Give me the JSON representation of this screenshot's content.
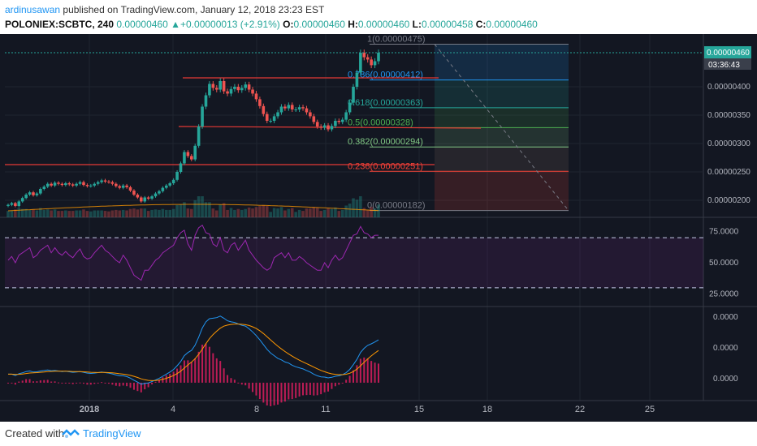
{
  "header": {
    "author": "ardinusawan",
    "published": "published on TradingView.com, January 12, 2018 23:23 EST",
    "symbol": "POLONIEX:SCBTC, 240",
    "last": "0.00000460",
    "change": "+0.00000013 (+2.91%)",
    "open_label": "O:",
    "open": "0.00000460",
    "high_label": "H:",
    "high": "0.00000460",
    "low_label": "L:",
    "low": "0.00000458",
    "close_label": "C:",
    "close": "0.00000460"
  },
  "footer": {
    "created_with": "Created with",
    "brand": "TradingView"
  },
  "colors": {
    "up": "#26a69a",
    "down": "#ef5350",
    "rsi": "#9c27b0",
    "macd": "#2196f3",
    "signal": "#ff9800",
    "price_tag": "#26a69a"
  },
  "chart_data": [
    {
      "type": "candlestick",
      "title": "",
      "price_tag": "0.00000460",
      "countdown": "03:36:43",
      "y_ticks": [
        "0.00000400",
        "0.00000350",
        "0.00000300",
        "0.00000250",
        "0.00000200"
      ],
      "ylim": [
        1.7e-06,
        4.9e-06
      ],
      "x_ticks": [
        "2018",
        "4",
        "8",
        "11",
        "15",
        "18",
        "22",
        "25"
      ],
      "fib_levels": [
        {
          "label": "1(0.00000475)",
          "value": 4.75e-06,
          "color": "#787b86"
        },
        {
          "label": "0.786(0.00000412)",
          "value": 4.12e-06,
          "color": "#2196f3"
        },
        {
          "label": "0.618(0.00000363)",
          "value": 3.63e-06,
          "color": "#26a69a"
        },
        {
          "label": "0.5(0.00000328)",
          "value": 3.28e-06,
          "color": "#4caf50"
        },
        {
          "label": "0.382(0.00000294)",
          "value": 2.94e-06,
          "color": "#81c784"
        },
        {
          "label": "0.236(0.00000251)",
          "value": 2.51e-06,
          "color": "#f44336"
        },
        {
          "label": "0(0.00000182)",
          "value": 1.82e-06,
          "color": "#787b86"
        }
      ],
      "closes": [
        1.92e-06,
        1.95e-06,
        1.9e-06,
        1.98e-06,
        2.04e-06,
        2.1e-06,
        2.14e-06,
        2.09e-06,
        2.12e-06,
        2.2e-06,
        2.24e-06,
        2.29e-06,
        2.26e-06,
        2.31e-06,
        2.29e-06,
        2.27e-06,
        2.3e-06,
        2.28e-06,
        2.26e-06,
        2.29e-06,
        2.32e-06,
        2.27e-06,
        2.25e-06,
        2.26e-06,
        2.29e-06,
        2.32e-06,
        2.35e-06,
        2.33e-06,
        2.32e-06,
        2.29e-06,
        2.25e-06,
        2.22e-06,
        2.26e-06,
        2.23e-06,
        2.17e-06,
        2.1e-06,
        2.05e-06,
        1.98e-06,
        2.05e-06,
        2.03e-06,
        2.07e-06,
        2.12e-06,
        2.16e-06,
        2.22e-06,
        2.26e-06,
        2.3e-06,
        2.36e-06,
        2.5e-06,
        2.65e-06,
        2.85e-06,
        2.78e-06,
        2.72e-06,
        2.96e-06,
        3.3e-06,
        3.65e-06,
        3.85e-06,
        4.05e-06,
        3.98e-06,
        3.95e-06,
        4.1e-06,
        3.92e-06,
        3.88e-06,
        3.96e-06,
        4e-06,
        3.94e-06,
        3.98e-06,
        4.04e-06,
        3.95e-06,
        3.88e-06,
        3.78e-06,
        3.66e-06,
        3.52e-06,
        3.4e-06,
        3.4e-06,
        3.48e-06,
        3.55e-06,
        3.65e-06,
        3.62e-06,
        3.68e-06,
        3.6e-06,
        3.6e-06,
        3.64e-06,
        3.62e-06,
        3.55e-06,
        3.48e-06,
        3.38e-06,
        3.3e-06,
        3.28e-06,
        3.32e-06,
        3.25e-06,
        3.31e-06,
        3.4e-06,
        3.38e-06,
        3.42e-06,
        3.55e-06,
        3.72e-06,
        4e-06,
        4.25e-06,
        4.6e-06,
        4.52e-06,
        4.48e-06,
        4.38e-06,
        4.45e-06,
        4.6e-06
      ]
    },
    {
      "type": "line",
      "series": [
        {
          "name": "RSI"
        }
      ],
      "y_ticks": [
        "75.0000",
        "50.0000",
        "25.0000"
      ],
      "ylim": [
        15,
        85
      ],
      "bands": [
        70,
        30
      ],
      "values": [
        52,
        55,
        50,
        56,
        58,
        60,
        62,
        54,
        56,
        60,
        62,
        64,
        58,
        62,
        58,
        56,
        59,
        56,
        54,
        58,
        61,
        55,
        53,
        54,
        58,
        61,
        64,
        60,
        58,
        55,
        52,
        50,
        56,
        52,
        46,
        40,
        38,
        36,
        44,
        44,
        48,
        52,
        54,
        58,
        60,
        62,
        64,
        70,
        74,
        76,
        65,
        60,
        72,
        78,
        80,
        74,
        73,
        65,
        63,
        70,
        60,
        58,
        64,
        66,
        60,
        64,
        68,
        60,
        56,
        52,
        49,
        46,
        44,
        46,
        54,
        56,
        58,
        54,
        58,
        52,
        52,
        55,
        53,
        50,
        48,
        46,
        44,
        44,
        50,
        46,
        52,
        56,
        52,
        54,
        60,
        66,
        72,
        73,
        79,
        74,
        73,
        70,
        72,
        72
      ]
    },
    {
      "type": "line",
      "series": [
        {
          "name": "MACD"
        },
        {
          "name": "Signal"
        },
        {
          "name": "Histogram"
        }
      ],
      "y_ticks": [
        "0.0000",
        "0.0000",
        "0.0000"
      ],
      "ylim": [
        -8,
        27
      ],
      "macd": [
        2,
        2,
        1.5,
        2.2,
        2.5,
        3,
        3.2,
        2.8,
        2.9,
        3.2,
        3.4,
        3.6,
        3.3,
        3.4,
        3.2,
        3,
        3.1,
        2.9,
        2.7,
        2.8,
        3,
        2.7,
        2.4,
        2.3,
        2.4,
        2.6,
        2.8,
        2.6,
        2.4,
        2.1,
        1.7,
        1.4,
        1.4,
        1.1,
        0.5,
        -0.3,
        -1,
        -1.8,
        -1.5,
        -1.3,
        -0.8,
        -0.2,
        0.4,
        1.2,
        2,
        2.8,
        3.8,
        5.2,
        6.8,
        9,
        10.2,
        11,
        13,
        16,
        19.5,
        21.8,
        23,
        23.2,
        23.4,
        24,
        23.2,
        22.2,
        21.8,
        21.6,
        21,
        20.5,
        20.2,
        19.2,
        18,
        16.6,
        15,
        13.2,
        11.4,
        10,
        9,
        8,
        7.4,
        6.6,
        6.2,
        5.4,
        4.8,
        4.4,
        4,
        3.4,
        2.8,
        2,
        1.4,
        1,
        0.9,
        0.6,
        0.8,
        1.2,
        1.4,
        1.8,
        2.6,
        3.8,
        5.6,
        7.6,
        10.2,
        11.8,
        12.9,
        13.5,
        14.2,
        15
      ]
    }
  ]
}
